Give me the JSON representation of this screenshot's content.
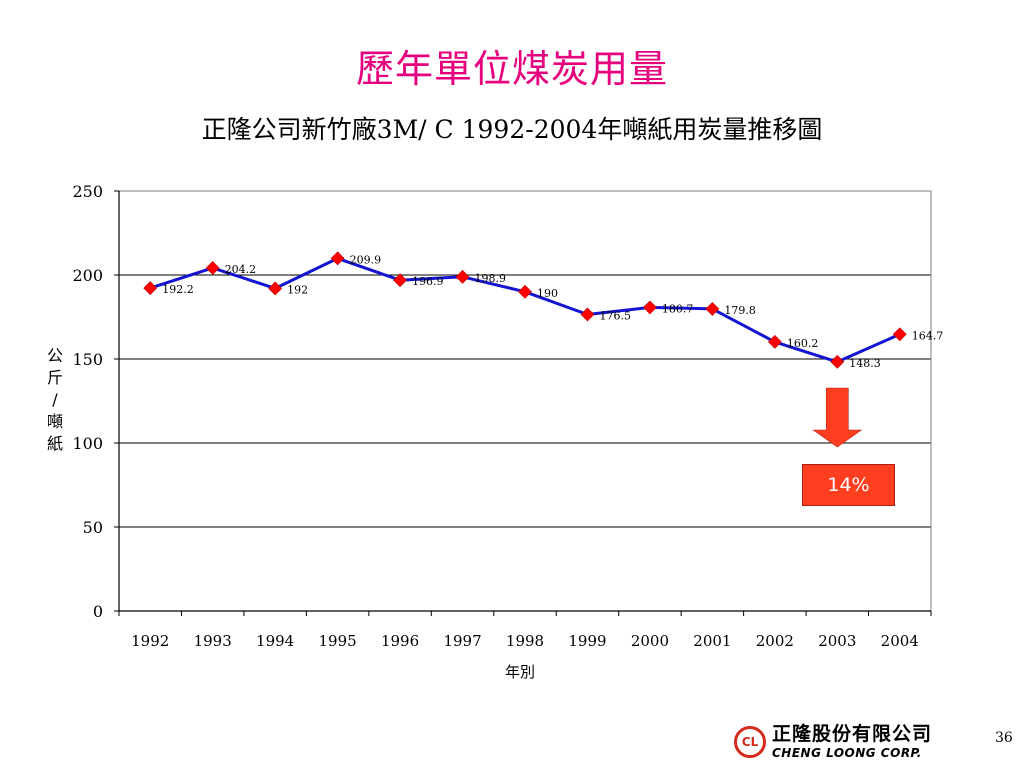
{
  "slide": {
    "title": "歷年單位煤炭用量",
    "page_number": "36",
    "badge_text": "14%",
    "logo": {
      "chinese": "正隆股份有限公司",
      "english": "CHENG LOONG CORP."
    }
  },
  "colors": {
    "title": "#e6007e",
    "line": "#1414d2",
    "marker": "#ff0000",
    "arrow": "#ff3d1f",
    "badge": "#ff3d1f",
    "logo_red": "#d42a1a"
  },
  "chart_data": {
    "type": "line",
    "title": "正隆公司新竹廠3M/ C 1992-2004年噸紙用炭量推移圖",
    "xlabel": "年別",
    "ylabel": "公\n斤\n/\n噸\n紙",
    "categories": [
      "1992",
      "1993",
      "1994",
      "1995",
      "1996",
      "1997",
      "1998",
      "1999",
      "2000",
      "2001",
      "2002",
      "2003",
      "2004"
    ],
    "values": [
      192.2,
      204.2,
      192,
      209.9,
      196.9,
      198.9,
      190,
      176.5,
      180.7,
      179.8,
      160.2,
      148.3,
      164.7
    ],
    "data_labels": [
      "192.2",
      "204.2",
      "192",
      "209.9",
      "196.9",
      "198.9",
      "190",
      "176.5",
      "180.7",
      "179.8",
      "160.2",
      "148.3",
      "164.7"
    ],
    "yticks": [
      "0",
      "50",
      "100",
      "150",
      "200",
      "250"
    ],
    "ylim": [
      0,
      250
    ],
    "grid": true,
    "legend": "none"
  }
}
